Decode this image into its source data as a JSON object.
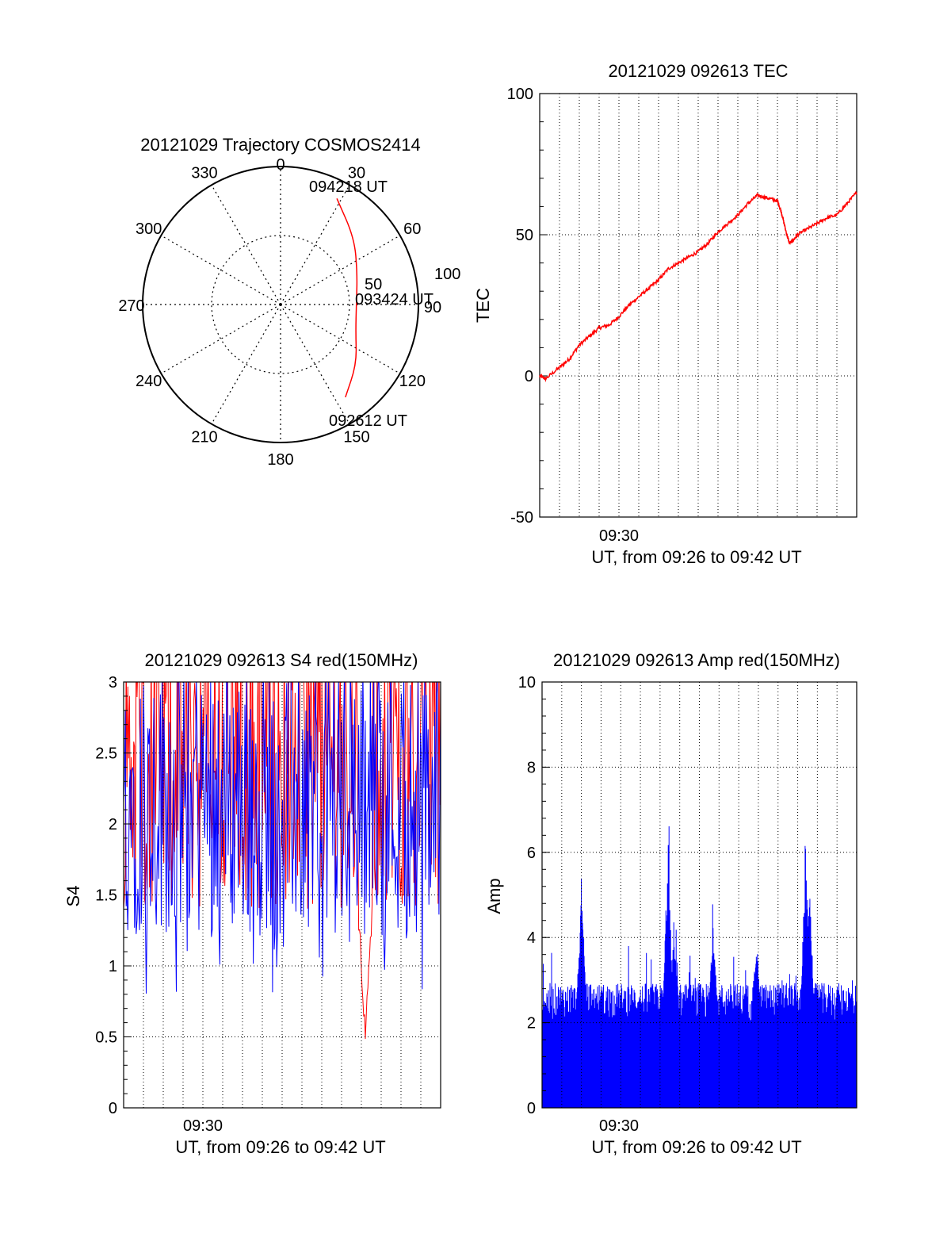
{
  "chart_data": [
    {
      "type": "polar",
      "title": "20121029 Trajectory COSMOS2414",
      "angle_labels": [
        "0",
        "30",
        "60",
        "90",
        "120",
        "150",
        "180",
        "210",
        "240",
        "270",
        "300",
        "330"
      ],
      "radial_labels": [
        "50",
        "100"
      ],
      "grid": true,
      "series_color": "#ff0000",
      "points": [
        {
          "time": "092612 UT",
          "azimuth": 145,
          "radius": 82
        },
        {
          "azimuth": 128,
          "radius": 70
        },
        {
          "azimuth": 110,
          "radius": 58
        },
        {
          "time": "093424 UT",
          "azimuth": 90,
          "radius": 55
        },
        {
          "azimuth": 68,
          "radius": 60
        },
        {
          "azimuth": 48,
          "radius": 72
        },
        {
          "time": "094218 UT",
          "azimuth": 28,
          "radius": 87
        }
      ]
    },
    {
      "type": "line",
      "title": "20121029 092613 TEC",
      "xlabel": "UT, from 09:26 to 09:42 UT",
      "ylabel": "TEC",
      "x_tick_labels": [
        {
          "value": 4,
          "label": "09:30"
        }
      ],
      "x_range_minutes": [
        0,
        16
      ],
      "ylim": [
        -50,
        100
      ],
      "y_tick_labels": [
        "-50",
        "0",
        "50",
        "100"
      ],
      "grid": true,
      "series_color": "#ff0000",
      "series": [
        {
          "x": [
            0,
            0.3,
            1,
            1.5,
            2,
            2.5,
            3,
            3.5,
            4,
            4.5,
            5,
            5.5,
            6,
            6.5,
            7,
            7.5,
            8,
            8.5,
            9,
            9.5,
            10,
            10.5,
            11,
            11.5,
            12,
            12.2,
            12.4,
            12.6,
            12.8,
            13,
            13.5,
            14,
            14.5,
            15,
            15.5,
            16
          ],
          "y": [
            0,
            -1,
            3,
            6,
            11,
            14,
            17,
            18,
            21,
            25,
            28,
            31,
            34,
            38,
            40,
            42,
            44,
            47,
            51,
            54,
            57,
            61,
            64,
            63,
            62,
            58,
            52,
            47,
            48,
            50,
            52,
            54,
            56,
            57,
            61,
            65
          ]
        }
      ]
    },
    {
      "type": "line",
      "title": "20121029 092613 S4 red(150MHz)",
      "xlabel": "UT, from 09:26 to 09:42 UT",
      "ylabel": "S4",
      "x_tick_labels": [
        {
          "value": 4,
          "label": "09:30"
        }
      ],
      "x_range_minutes": [
        0,
        16
      ],
      "ylim": [
        0,
        3
      ],
      "y_tick_labels": [
        "0",
        "0.5",
        "1",
        "1.5",
        "2",
        "2.5",
        "3"
      ],
      "grid": true,
      "series_colors": [
        "#ff0000",
        "#0000ff"
      ],
      "red_dip": {
        "x": 12.2,
        "min": 0.4
      },
      "blue_range": [
        1.0,
        3.0
      ],
      "red_range": [
        1.4,
        3.0
      ]
    },
    {
      "type": "bar",
      "title": "20121029 092613 Amp red(150MHz)",
      "xlabel": "UT, from 09:26 to 09:42 UT",
      "ylabel": "Amp",
      "x_tick_labels": [
        {
          "value": 4,
          "label": "09:30"
        }
      ],
      "x_range_minutes": [
        0,
        16
      ],
      "ylim": [
        0,
        10
      ],
      "y_tick_labels": [
        "0",
        "2",
        "4",
        "6",
        "8",
        "10"
      ],
      "grid": true,
      "series_color": "#0000ff",
      "baseline": 2.3,
      "peaks": [
        {
          "x": 2.0,
          "y": 5.5
        },
        {
          "x": 6.4,
          "y": 6.5
        },
        {
          "x": 6.7,
          "y": 4.4
        },
        {
          "x": 8.7,
          "y": 4.3
        },
        {
          "x": 10.9,
          "y": 4.0
        },
        {
          "x": 13.4,
          "y": 6.6
        },
        {
          "x": 13.6,
          "y": 5.2
        }
      ]
    }
  ]
}
